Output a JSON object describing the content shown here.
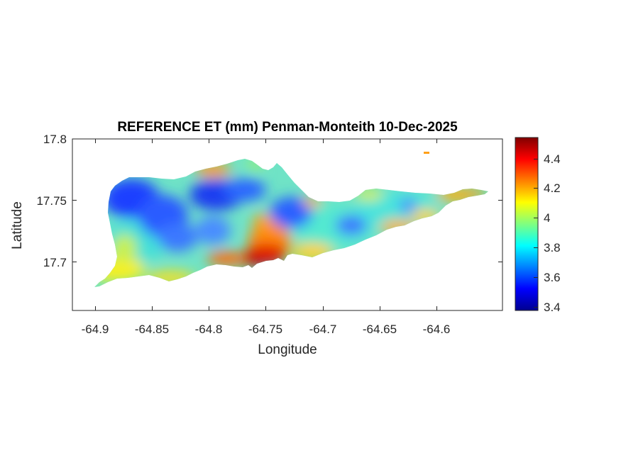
{
  "title": "REFERENCE ET (mm) Penman-Monteith 10-Dec-2025",
  "xlabel": "Longitude",
  "ylabel": "Latitude",
  "x_ticks": [
    "-64.9",
    "-64.85",
    "-64.8",
    "-64.75",
    "-64.7",
    "-64.65",
    "-64.6"
  ],
  "y_ticks": [
    "17.8",
    "17.75",
    "17.7"
  ],
  "colorbar": {
    "ticks": [
      "4.4",
      "4.2",
      "4",
      "3.8",
      "3.6",
      "3.4"
    ],
    "range": [
      3.37,
      4.54
    ],
    "colormap": "jet"
  },
  "chart_data": {
    "type": "heatmap",
    "title": "REFERENCE ET (mm) Penman-Monteith 10-Dec-2025",
    "xlabel": "Longitude",
    "ylabel": "Latitude",
    "xlim": [
      -64.92,
      -64.56
    ],
    "ylim": [
      17.66,
      17.8
    ],
    "clim": [
      3.37,
      4.54
    ],
    "colormap": "jet",
    "region_samples": [
      {
        "lon": -64.875,
        "lat": 17.755,
        "value": 3.55
      },
      {
        "lon": -64.84,
        "lat": 17.735,
        "value": 3.6
      },
      {
        "lon": -64.8,
        "lat": 17.75,
        "value": 3.55
      },
      {
        "lon": -64.81,
        "lat": 17.72,
        "value": 3.65
      },
      {
        "lon": -64.76,
        "lat": 17.73,
        "value": 3.85
      },
      {
        "lon": -64.74,
        "lat": 17.74,
        "value": 3.75
      },
      {
        "lon": -64.71,
        "lat": 17.73,
        "value": 3.8
      },
      {
        "lon": -64.69,
        "lat": 17.735,
        "value": 3.65
      },
      {
        "lon": -64.65,
        "lat": 17.75,
        "value": 3.85
      },
      {
        "lon": -64.64,
        "lat": 17.75,
        "value": 3.7
      },
      {
        "lon": -64.76,
        "lat": 17.705,
        "value": 4.5
      },
      {
        "lon": -64.75,
        "lat": 17.705,
        "value": 4.45
      },
      {
        "lon": -64.78,
        "lat": 17.705,
        "value": 4.35
      },
      {
        "lon": -64.89,
        "lat": 17.69,
        "value": 4.15
      },
      {
        "lon": -64.86,
        "lat": 17.7,
        "value": 3.95
      },
      {
        "lon": -64.62,
        "lat": 17.75,
        "value": 4.2
      },
      {
        "lon": -64.59,
        "lat": 17.755,
        "value": 4.25
      },
      {
        "lon": -64.79,
        "lat": 17.765,
        "value": 4.3
      },
      {
        "lon": -64.7,
        "lat": 17.712,
        "value": 4.05
      },
      {
        "lon": -64.665,
        "lat": 17.72,
        "value": 4.05
      },
      {
        "lon": -64.72,
        "lat": 17.75,
        "value": 3.9
      }
    ]
  }
}
